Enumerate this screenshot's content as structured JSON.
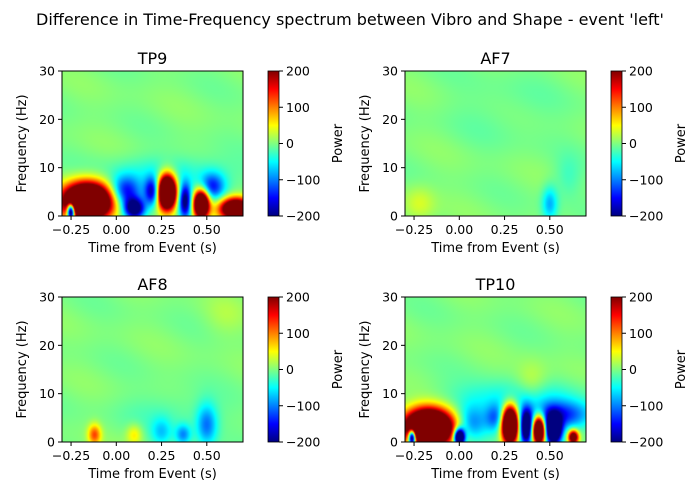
{
  "figure": {
    "suptitle": "Difference in Time-Frequency spectrum between Vibro and Shape - event 'left'"
  },
  "colors": {
    "colormap": [
      "#00007f",
      "#0000ff",
      "#007fff",
      "#00ffff",
      "#7fff7f",
      "#ffff00",
      "#ff7f00",
      "#ff0000",
      "#7f0000"
    ],
    "background_mid": "#80ff80"
  },
  "chart_data": [
    {
      "type": "heatmap",
      "title": "TP9",
      "xlabel": "Time from Event (s)",
      "ylabel": "Frequency (Hz)",
      "xlim": [
        -0.3,
        0.7
      ],
      "ylim": [
        0,
        30
      ],
      "xticks": [
        "-0.25",
        "0.00",
        "0.25",
        "0.50"
      ],
      "yticks": [
        "0",
        "10",
        "20",
        "30"
      ],
      "colorbar": {
        "label": "Power",
        "ticks": [
          "200",
          "100",
          "0",
          "−100",
          "−200"
        ],
        "range": [
          -200,
          200
        ]
      },
      "blobs": [
        {
          "t": -0.16,
          "f": 3.0,
          "st": 0.09,
          "sf": 2.5,
          "v": 600
        },
        {
          "t": -0.25,
          "f": 1.0,
          "st": 0.015,
          "sf": 1.2,
          "v": -450
        },
        {
          "t": 0.05,
          "f": 5.0,
          "st": 0.06,
          "sf": 2.2,
          "v": -160
        },
        {
          "t": 0.1,
          "f": 1.5,
          "st": 0.04,
          "sf": 1.5,
          "v": -250
        },
        {
          "t": 0.28,
          "f": 5.0,
          "st": 0.035,
          "sf": 2.4,
          "v": 550
        },
        {
          "t": 0.2,
          "f": 5.0,
          "st": 0.03,
          "sf": 2.0,
          "v": -180
        },
        {
          "t": 0.38,
          "f": 3.0,
          "st": 0.025,
          "sf": 2.5,
          "v": -220
        },
        {
          "t": 0.47,
          "f": 2.5,
          "st": 0.03,
          "sf": 2.0,
          "v": 450
        },
        {
          "t": 0.53,
          "f": 6.0,
          "st": 0.05,
          "sf": 2.0,
          "v": -140
        },
        {
          "t": 0.66,
          "f": 1.5,
          "st": 0.06,
          "sf": 1.5,
          "v": 400
        },
        {
          "t": 0.3,
          "f": 9.0,
          "st": 0.25,
          "sf": 2.5,
          "v": -40
        }
      ]
    },
    {
      "type": "heatmap",
      "title": "AF7",
      "xlabel": "Time from Event (s)",
      "ylabel": "Frequency (Hz)",
      "xlim": [
        -0.3,
        0.7
      ],
      "ylim": [
        0,
        30
      ],
      "xticks": [
        "-0.25",
        "0.00",
        "0.25",
        "0.50"
      ],
      "yticks": [
        "0",
        "10",
        "20",
        "30"
      ],
      "colorbar": {
        "label": "Power",
        "ticks": [
          "200",
          "100",
          "0",
          "−100",
          "−200"
        ],
        "range": [
          -200,
          200
        ]
      },
      "blobs": [
        {
          "t": -0.22,
          "f": 2.5,
          "st": 0.06,
          "sf": 2.5,
          "v": 35
        },
        {
          "t": 0.5,
          "f": 2.5,
          "st": 0.03,
          "sf": 2.5,
          "v": -80
        },
        {
          "t": 0.25,
          "f": 22.0,
          "st": 0.2,
          "sf": 5.0,
          "v": -10
        },
        {
          "t": 0.6,
          "f": 8.0,
          "st": 0.05,
          "sf": 3.0,
          "v": -25
        }
      ]
    },
    {
      "type": "heatmap",
      "title": "AF8",
      "xlabel": "Time from Event (s)",
      "ylabel": "Frequency (Hz)",
      "xlim": [
        -0.3,
        0.7
      ],
      "ylim": [
        0,
        30
      ],
      "xticks": [
        "-0.25",
        "0.00",
        "0.25",
        "0.50"
      ],
      "yticks": [
        "0",
        "10",
        "20",
        "30"
      ],
      "colorbar": {
        "label": "Power",
        "ticks": [
          "200",
          "100",
          "0",
          "−100",
          "−200"
        ],
        "range": [
          -200,
          200
        ]
      },
      "blobs": [
        {
          "t": -0.12,
          "f": 1.5,
          "st": 0.025,
          "sf": 1.5,
          "v": 120
        },
        {
          "t": 0.1,
          "f": 1.5,
          "st": 0.03,
          "sf": 1.5,
          "v": 60
        },
        {
          "t": 0.25,
          "f": 2.0,
          "st": 0.04,
          "sf": 2.0,
          "v": -60
        },
        {
          "t": 0.37,
          "f": 1.5,
          "st": 0.03,
          "sf": 1.5,
          "v": -90
        },
        {
          "t": 0.5,
          "f": 3.5,
          "st": 0.04,
          "sf": 3.0,
          "v": -100
        },
        {
          "t": 0.3,
          "f": 6.0,
          "st": 0.2,
          "sf": 3.0,
          "v": -20
        },
        {
          "t": 0.6,
          "f": 26.0,
          "st": 0.08,
          "sf": 3.0,
          "v": 15
        }
      ]
    },
    {
      "type": "heatmap",
      "title": "TP10",
      "xlabel": "Time from Event (s)",
      "ylabel": "Frequency (Hz)",
      "xlim": [
        -0.3,
        0.7
      ],
      "ylim": [
        0,
        30
      ],
      "xticks": [
        "-0.25",
        "0.00",
        "0.25",
        "0.50"
      ],
      "yticks": [
        "0",
        "10",
        "20",
        "30"
      ],
      "colorbar": {
        "label": "Power",
        "ticks": [
          "200",
          "100",
          "0",
          "−100",
          "−200"
        ],
        "range": [
          -200,
          200
        ]
      },
      "blobs": [
        {
          "t": -0.17,
          "f": 3.0,
          "st": 0.09,
          "sf": 2.5,
          "v": 600
        },
        {
          "t": -0.26,
          "f": 1.0,
          "st": 0.015,
          "sf": 1.2,
          "v": -450
        },
        {
          "t": 0.0,
          "f": 1.0,
          "st": 0.02,
          "sf": 1.2,
          "v": -400
        },
        {
          "t": 0.07,
          "f": 4.0,
          "st": 0.06,
          "sf": 2.5,
          "v": -90
        },
        {
          "t": 0.28,
          "f": 3.5,
          "st": 0.03,
          "sf": 2.5,
          "v": 550
        },
        {
          "t": 0.37,
          "f": 3.0,
          "st": 0.025,
          "sf": 2.5,
          "v": -300
        },
        {
          "t": 0.44,
          "f": 2.5,
          "st": 0.025,
          "sf": 2.0,
          "v": 450
        },
        {
          "t": 0.52,
          "f": 2.5,
          "st": 0.03,
          "sf": 2.0,
          "v": -400
        },
        {
          "t": 0.55,
          "f": 5.5,
          "st": 0.12,
          "sf": 2.0,
          "v": -140
        },
        {
          "t": 0.63,
          "f": 1.0,
          "st": 0.02,
          "sf": 1.0,
          "v": 300
        },
        {
          "t": 0.2,
          "f": 5.0,
          "st": 0.04,
          "sf": 2.0,
          "v": -100
        },
        {
          "t": 0.4,
          "f": 12.0,
          "st": 0.06,
          "sf": 3.0,
          "v": 35
        },
        {
          "t": 0.3,
          "f": 9.0,
          "st": 0.25,
          "sf": 2.5,
          "v": -50
        }
      ]
    }
  ]
}
